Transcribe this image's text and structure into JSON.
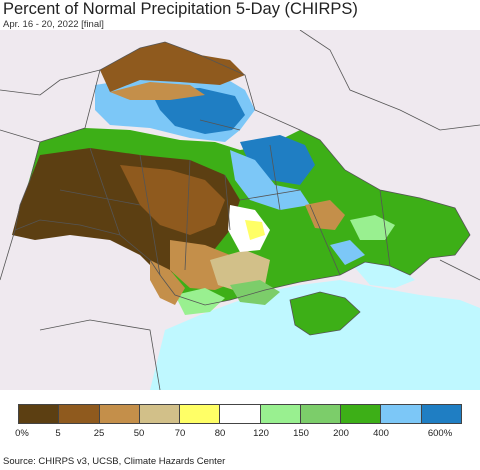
{
  "title": "Percent of Normal Precipitation 5-Day (CHIRPS)",
  "subtitle": "Apr. 16 - 20, 2022 [final]",
  "source": "Source: CHIRPS v3, UCSB, Climate Hazards Center",
  "legend": {
    "colors": [
      "#5c3f12",
      "#8f5a1e",
      "#c48f4a",
      "#d2c089",
      "#ffff66",
      "#ffffff",
      "#99f090",
      "#7ccd6a",
      "#3daf17",
      "#7cc7f7",
      "#1f7ec3"
    ],
    "ticks": [
      "0%",
      "5",
      "25",
      "50",
      "70",
      "80",
      "120",
      "150",
      "200",
      "400",
      "600%"
    ]
  },
  "colors": {
    "background": "#efe9ef",
    "sea": "#bff8ff",
    "border": "#555555"
  }
}
